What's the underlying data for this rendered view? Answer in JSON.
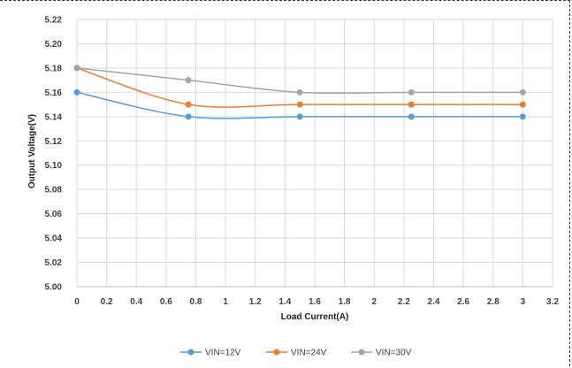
{
  "chart_data": {
    "type": "line",
    "title": "",
    "xlabel": "Load Current(A)",
    "ylabel": "Output Voltage(V)",
    "xlim": [
      0,
      3.2
    ],
    "ylim": [
      5.0,
      5.22
    ],
    "x_ticks": [
      "0",
      "0.2",
      "0.4",
      "0.6",
      "0.8",
      "1",
      "1.2",
      "1.4",
      "1.6",
      "1.8",
      "2",
      "2.2",
      "2.4",
      "2.6",
      "2.8",
      "3",
      "3.2"
    ],
    "y_ticks": [
      "5.00",
      "5.02",
      "5.04",
      "5.06",
      "5.08",
      "5.10",
      "5.12",
      "5.14",
      "5.16",
      "5.18",
      "5.20",
      "5.22"
    ],
    "grid": true,
    "legend_position": "bottom",
    "x": [
      0,
      0.75,
      1.5,
      2.25,
      3
    ],
    "series": [
      {
        "name": "VIN=12V",
        "color": "#5B9BD5",
        "values": [
          5.16,
          5.14,
          5.14,
          5.14,
          5.14
        ]
      },
      {
        "name": "VIN=24V",
        "color": "#ED7D31",
        "values": [
          5.18,
          5.15,
          5.15,
          5.15,
          5.15
        ]
      },
      {
        "name": "VIN=30V",
        "color": "#A5A5A5",
        "values": [
          5.18,
          5.17,
          5.16,
          5.16,
          5.16
        ]
      }
    ]
  }
}
